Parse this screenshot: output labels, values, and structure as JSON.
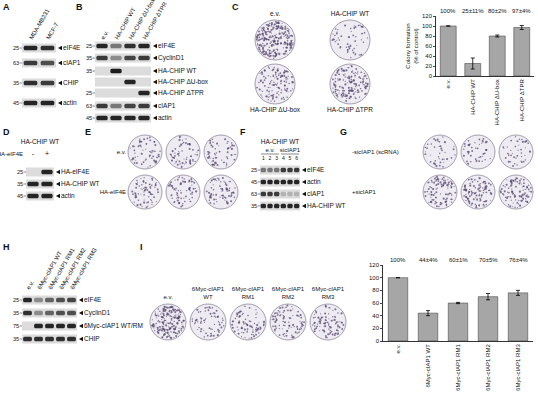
{
  "panels": [
    {
      "letter": "A",
      "kind": "blot",
      "lanes": [
        "MDA-MB231",
        "MCF-7"
      ],
      "rows": [
        {
          "marker": 25,
          "label": "eIF4E",
          "bands": [
            0.9,
            0.85
          ]
        },
        {
          "marker": 63,
          "label": "cIAP1",
          "bands": [
            0.8,
            0.7
          ]
        },
        {
          "marker": 35,
          "label": "CHIP",
          "bands": [
            0.85,
            0.8
          ]
        },
        {
          "marker": 45,
          "label": "actin",
          "bands": [
            0.9,
            0.9
          ]
        }
      ]
    },
    {
      "letter": "B",
      "kind": "blot",
      "lanes": [
        "e.v.",
        "HA-CHIP WT",
        "HA-CHIP ΔU-box",
        "HA-CHIP ΔTPR"
      ],
      "rows": [
        {
          "marker": 25,
          "label": "eIF4E",
          "bands": [
            0.9,
            0.5,
            0.85,
            0.9
          ]
        },
        {
          "marker": 35,
          "label": "CyclinD1",
          "bands": [
            0.8,
            0.4,
            0.75,
            0.8
          ]
        },
        {
          "marker": 35,
          "label": "HA-CHIP WT",
          "bands": [
            0,
            0.95,
            0,
            0
          ]
        },
        {
          "marker": null,
          "label": "HA-CHIP ΔU-box",
          "bands": [
            0,
            0,
            0.9,
            0
          ]
        },
        {
          "marker": 25,
          "label": "HA-CHIP ΔTPR",
          "bands": [
            0,
            0,
            0,
            0.9
          ]
        },
        {
          "marker": 63,
          "label": "cIAP1",
          "bands": [
            0.8,
            0.5,
            0.75,
            0.8
          ]
        },
        {
          "marker": 45,
          "label": "actin",
          "bands": [
            0.9,
            0.9,
            0.9,
            0.9
          ]
        }
      ]
    },
    {
      "letter": "C",
      "kind": "plates",
      "plates": [
        {
          "label": "e.v.",
          "density": 0.9
        },
        {
          "label": "HA-CHIP WT",
          "density": 0.2
        },
        {
          "label": "HA-CHIP ΔU-box",
          "density": 0.45
        },
        {
          "label": "HA-CHIP ΔTPR",
          "density": 0.55
        }
      ]
    },
    {
      "letter": "D",
      "kind": "blot",
      "header": "HA-CHIP WT",
      "lane_row": {
        "label": "HA-eIF4E",
        "lanes": [
          "-",
          "+"
        ]
      },
      "rows": [
        {
          "marker": 25,
          "label": "HA-eIF4E",
          "bands": [
            0,
            0.9
          ]
        },
        {
          "marker": 35,
          "label": "HA-CHIP WT",
          "bands": [
            0.9,
            0.9
          ]
        },
        {
          "marker": 45,
          "label": "actin",
          "bands": [
            0.9,
            0.9
          ]
        }
      ]
    },
    {
      "letter": "E",
      "kind": "plate_rows",
      "rows": [
        {
          "label": "e.v.",
          "plates": [
            0.3,
            0.3,
            0.3
          ]
        },
        {
          "label": "HA-eIF4E",
          "plates": [
            0.35,
            0.35,
            0.35
          ]
        }
      ]
    },
    {
      "letter": "F",
      "kind": "blot",
      "header": "HA-CHIP WT",
      "groups": [
        {
          "label": "e.v.",
          "span": 3
        },
        {
          "label": "sicIAP1",
          "span": 3
        }
      ],
      "lane_numbers": [
        1,
        2,
        3,
        4,
        5,
        6
      ],
      "rows": [
        {
          "marker": 25,
          "label": "eIF4E",
          "bands": [
            0.5,
            0.5,
            0.5,
            0.8,
            0.8,
            0.8
          ]
        },
        {
          "marker": 45,
          "label": "actin",
          "bands": [
            0.9,
            0.9,
            0.9,
            0.9,
            0.9,
            0.9
          ]
        },
        {
          "marker": 63,
          "label": "cIAP1",
          "bands": [
            0.8,
            0.8,
            0.8,
            0.2,
            0.2,
            0.2
          ]
        },
        {
          "marker": 35,
          "label": "HA-CHIP WT",
          "bands": [
            0.9,
            0.9,
            0.9,
            0.9,
            0.9,
            0.9
          ]
        }
      ]
    },
    {
      "letter": "G",
      "kind": "plate_rows",
      "rows": [
        {
          "label": "-sicIAP1 (scRNA)",
          "plates": [
            0.2,
            0.2,
            0.2
          ]
        },
        {
          "label": "+sicIAP1",
          "plates": [
            0.5,
            0.5,
            0.5
          ]
        }
      ]
    },
    {
      "letter": "H",
      "kind": "blot",
      "lanes": [
        "e.v.",
        "6Myc-cIAP1 WT",
        "6Myc-cIAP1 RM1",
        "6Myc-cIAP1 RM2",
        "6Myc-cIAP1 RM3"
      ],
      "rows": [
        {
          "marker": 25,
          "label": "eIF4E",
          "bands": [
            0.9,
            0.4,
            0.6,
            0.7,
            0.75
          ]
        },
        {
          "marker": 35,
          "label": "CyclinD1",
          "bands": [
            0.85,
            0.4,
            0.6,
            0.7,
            0.7
          ]
        },
        {
          "marker": 75,
          "label": "6Myc-cIAP1 WT/RM",
          "bands": [
            0,
            0.9,
            0.9,
            0.9,
            0.9
          ]
        },
        {
          "marker": 35,
          "label": "CHIP",
          "bands": [
            0.85,
            0.85,
            0.85,
            0.85,
            0.85
          ]
        }
      ]
    },
    {
      "letter": "I",
      "kind": "plates",
      "plates": [
        {
          "label": "e.v.",
          "density": 0.9
        },
        {
          "label": "6Myc-cIAP1 WT",
          "density": 0.3
        },
        {
          "label": "6Myc-cIAP1 RM1",
          "density": 0.35
        },
        {
          "label": "6Myc-cIAP1 RM2",
          "density": 0.4
        },
        {
          "label": "6Myc-cIAP1 RM3",
          "density": 0.4
        }
      ]
    }
  ],
  "chart_data": [
    {
      "type": "bar",
      "y_label": "Colony formation (% of control)",
      "categories": [
        "e.v.",
        "HA-CHIP WT",
        "HA-CHIP ΔU-box",
        "HA-CHIP ΔTPR"
      ],
      "values": [
        100,
        25,
        80,
        97
      ],
      "errors": [
        null,
        11,
        2,
        4
      ],
      "value_labels": [
        "100%",
        "25±11%",
        "80±2%",
        "97±4%"
      ],
      "data_labels": true,
      "color": "#a6a6a6",
      "ylim": [
        0,
        120
      ],
      "yticks": [
        0,
        20,
        40,
        60,
        80,
        100,
        120
      ]
    },
    {
      "type": "bar",
      "categories": [
        "e.v.",
        "6Myc-cIAP1 WT",
        "6Myc-cIAP1 RM1",
        "6Myc-cIAP1 RM2",
        "6Myc-cIAP1 RM3"
      ],
      "values": [
        100,
        44,
        60,
        70,
        76
      ],
      "errors": [
        null,
        4,
        1,
        5,
        4
      ],
      "value_labels": [
        "100%",
        "44±4%",
        "60±1%",
        "70±5%",
        "76±4%"
      ],
      "data_labels": true,
      "color": "#a6a6a6",
      "ylim": [
        0,
        120
      ],
      "yticks": [
        0,
        20,
        40,
        60,
        80,
        100,
        120
      ]
    }
  ]
}
